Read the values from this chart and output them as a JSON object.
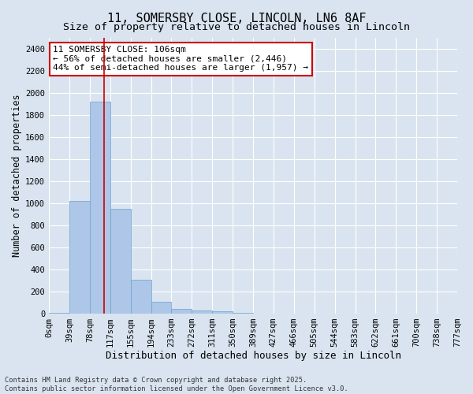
{
  "title1": "11, SOMERSBY CLOSE, LINCOLN, LN6 8AF",
  "title2": "Size of property relative to detached houses in Lincoln",
  "xlabel": "Distribution of detached houses by size in Lincoln",
  "ylabel": "Number of detached properties",
  "bar_values": [
    5,
    1020,
    1920,
    950,
    310,
    110,
    40,
    30,
    20,
    5,
    0,
    0,
    0,
    0,
    0,
    0,
    0,
    0,
    0,
    0
  ],
  "bin_labels": [
    "0sqm",
    "39sqm",
    "78sqm",
    "117sqm",
    "155sqm",
    "194sqm",
    "233sqm",
    "272sqm",
    "311sqm",
    "350sqm",
    "389sqm",
    "427sqm",
    "466sqm",
    "505sqm",
    "544sqm",
    "583sqm",
    "622sqm",
    "661sqm",
    "700sqm",
    "738sqm",
    "777sqm"
  ],
  "bar_color": "#aec6e8",
  "bar_edge_color": "#6aa3cc",
  "vline_x": 2.718,
  "vline_color": "#cc0000",
  "annotation_text": "11 SOMERSBY CLOSE: 106sqm\n← 56% of detached houses are smaller (2,446)\n44% of semi-detached houses are larger (1,957) →",
  "annotation_box_facecolor": "#ffffff",
  "annotation_box_edgecolor": "#cc0000",
  "ylim": [
    0,
    2500
  ],
  "yticks": [
    0,
    200,
    400,
    600,
    800,
    1000,
    1200,
    1400,
    1600,
    1800,
    2000,
    2200,
    2400
  ],
  "background_color": "#d9e4f0",
  "plot_bg_color": "#d9e4f0",
  "footnote": "Contains HM Land Registry data © Crown copyright and database right 2025.\nContains public sector information licensed under the Open Government Licence v3.0.",
  "title1_fontsize": 11,
  "title2_fontsize": 9.5,
  "xlabel_fontsize": 9,
  "ylabel_fontsize": 8.5,
  "tick_fontsize": 7.5,
  "annotation_fontsize": 8
}
